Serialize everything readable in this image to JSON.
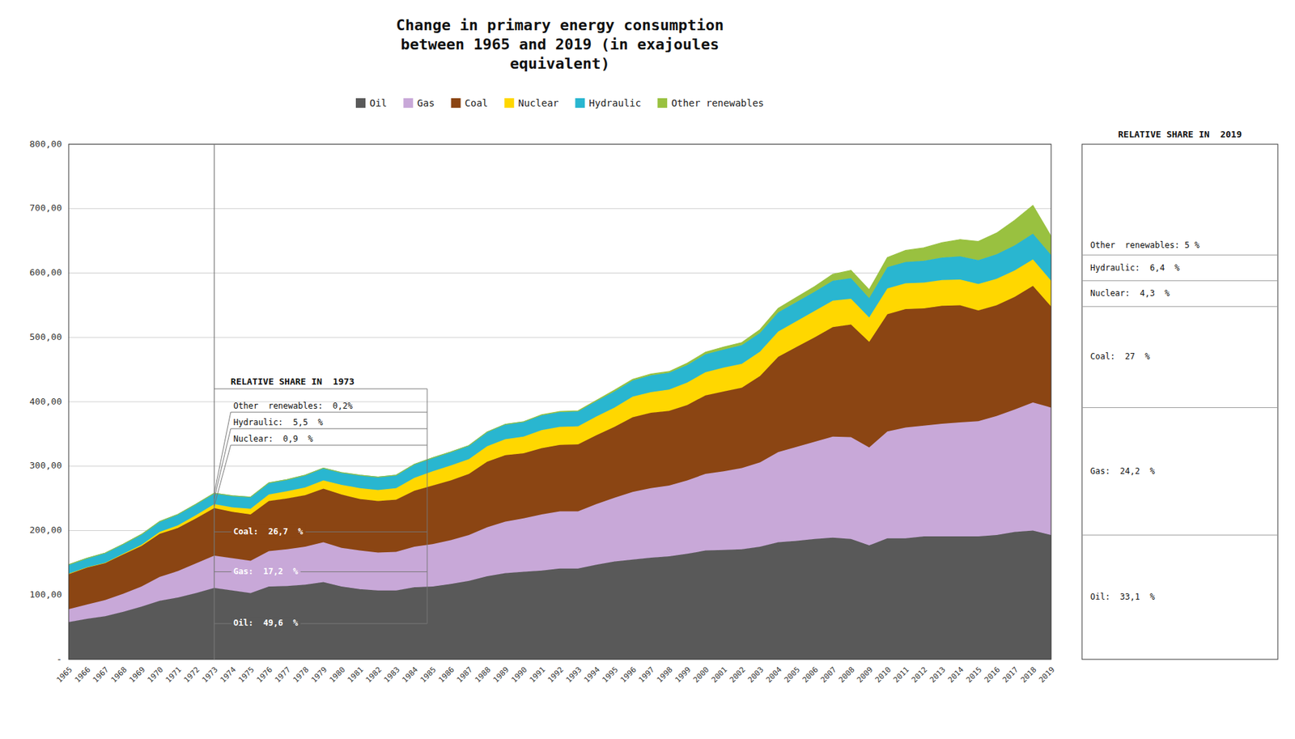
{
  "chart_data": {
    "type": "area",
    "stacked": true,
    "title": "Change in primary energy consumption\nbetween 1965 and 2019 (in exajoules\nequivalent)",
    "x": [
      1965,
      1966,
      1967,
      1968,
      1969,
      1970,
      1971,
      1972,
      1973,
      1974,
      1975,
      1976,
      1977,
      1978,
      1979,
      1980,
      1981,
      1982,
      1983,
      1984,
      1985,
      1986,
      1987,
      1988,
      1989,
      1990,
      1991,
      1992,
      1993,
      1994,
      1995,
      1996,
      1997,
      1998,
      1999,
      2000,
      2001,
      2002,
      2003,
      2004,
      2005,
      2006,
      2007,
      2008,
      2009,
      2010,
      2011,
      2012,
      2013,
      2014,
      2015,
      2016,
      2017,
      2018,
      2019
    ],
    "series": [
      {
        "name": "Oil",
        "color": "#595959",
        "values": [
          58,
          63,
          67,
          74,
          82,
          91,
          96,
          103,
          111,
          107,
          103,
          113,
          114,
          116,
          120,
          113,
          109,
          107,
          107,
          112,
          113,
          117,
          122,
          129,
          134,
          136,
          138,
          141,
          141,
          147,
          152,
          155,
          158,
          160,
          164,
          169,
          170,
          171,
          175,
          182,
          184,
          187,
          189,
          187,
          177,
          188,
          188,
          191,
          191,
          191,
          191,
          193,
          198,
          200,
          193
        ]
      },
      {
        "name": "Gas",
        "color": "#c8a8d8",
        "values": [
          20,
          22,
          25,
          28,
          31,
          37,
          41,
          46,
          50,
          50,
          50,
          55,
          57,
          59,
          62,
          60,
          60,
          59,
          60,
          63,
          66,
          68,
          71,
          76,
          80,
          83,
          87,
          89,
          89,
          94,
          99,
          105,
          108,
          110,
          114,
          119,
          122,
          126,
          131,
          140,
          146,
          151,
          157,
          158,
          152,
          166,
          172,
          172,
          175,
          177,
          179,
          185,
          190,
          199,
          198
        ]
      },
      {
        "name": "Coal",
        "color": "#8B4513",
        "values": [
          55,
          58,
          58,
          61,
          63,
          67,
          67,
          70,
          74,
          72,
          72,
          78,
          79,
          80,
          83,
          83,
          80,
          80,
          81,
          87,
          91,
          93,
          95,
          102,
          103,
          101,
          103,
          103,
          104,
          107,
          110,
          116,
          117,
          116,
          117,
          122,
          124,
          125,
          134,
          148,
          155,
          162,
          170,
          175,
          164,
          182,
          184,
          182,
          183,
          182,
          172,
          172,
          175,
          181,
          157
        ]
      },
      {
        "name": "Nuclear",
        "color": "#FFD700",
        "values": [
          0,
          0,
          0,
          1,
          2,
          3,
          4,
          5,
          6,
          7,
          9,
          10,
          11,
          12,
          13,
          15,
          17,
          17,
          18,
          20,
          22,
          23,
          23,
          24,
          25,
          26,
          28,
          28,
          28,
          29,
          30,
          32,
          32,
          33,
          35,
          36,
          37,
          37,
          38,
          39,
          40,
          41,
          41,
          40,
          38,
          40,
          40,
          40,
          40,
          40,
          41,
          41,
          41,
          41,
          40
        ]
      },
      {
        "name": "Hydraulic",
        "color": "#29B6D0",
        "values": [
          14,
          14,
          15,
          15,
          16,
          16,
          17,
          17,
          17,
          18,
          18,
          18,
          18,
          19,
          19,
          19,
          20,
          20,
          20,
          21,
          21,
          21,
          21,
          22,
          23,
          23,
          23,
          23,
          23,
          24,
          25,
          25,
          26,
          26,
          27,
          28,
          28,
          29,
          29,
          30,
          30,
          30,
          31,
          32,
          30,
          33,
          33,
          34,
          35,
          36,
          37,
          38,
          39,
          40,
          40
        ]
      },
      {
        "name": "Other renewables",
        "color": "#99C140",
        "values": [
          0,
          0,
          0,
          0,
          0,
          0,
          0,
          0,
          0,
          0,
          0,
          0,
          0,
          0,
          0,
          0,
          0,
          0,
          0,
          0,
          0,
          0,
          0,
          0,
          0,
          0,
          1,
          1,
          1,
          1,
          2,
          2,
          2,
          2,
          3,
          3,
          4,
          4,
          5,
          6,
          7,
          8,
          10,
          12,
          13,
          15,
          18,
          20,
          23,
          26,
          29,
          33,
          39,
          44,
          29
        ]
      }
    ],
    "xlim": [
      1965,
      2019
    ],
    "xticks": [
      1965,
      1966,
      1967,
      1968,
      1969,
      1970,
      1971,
      1972,
      1973,
      1974,
      1975,
      1976,
      1977,
      1978,
      1979,
      1980,
      1981,
      1982,
      1983,
      1984,
      1985,
      1986,
      1987,
      1988,
      1989,
      1990,
      1991,
      1992,
      1993,
      1994,
      1995,
      1996,
      1997,
      1998,
      1999,
      2000,
      2001,
      2002,
      2003,
      2004,
      2005,
      2006,
      2007,
      2008,
      2009,
      2010,
      2011,
      2012,
      2013,
      2014,
      2015,
      2016,
      2017,
      2018,
      2019
    ],
    "ylim": [
      0,
      800
    ],
    "yticks": [
      {
        "value": 0,
        "label": "-"
      },
      {
        "value": 100,
        "label": "100,00"
      },
      {
        "value": 200,
        "label": "200,00"
      },
      {
        "value": 300,
        "label": "300,00"
      },
      {
        "value": 400,
        "label": "400,00"
      },
      {
        "value": 500,
        "label": "500,00"
      },
      {
        "value": 600,
        "label": "600,00"
      },
      {
        "value": 700,
        "label": "700,00"
      },
      {
        "value": 800,
        "label": "800,00"
      }
    ],
    "grid": true,
    "legend": "top",
    "annotations": [
      {
        "title": "RELATIVE SHARE IN  1973",
        "x": 1973,
        "labels": [
          "Other  renewables:  0,2%",
          "Hydraulic:  5,5  %",
          "Nuclear:  0,9  %",
          "Coal:  26,7  %",
          "Gas:  17,2  %",
          "Oil:  49,6  %"
        ]
      },
      {
        "title": "RELATIVE SHARE IN  2019",
        "x": 2019,
        "labels": [
          "Other  renewables: 5 %",
          "Hydraulic:  6,4  %",
          "Nuclear:  4,3  %",
          "Coal:  27  %",
          "Gas:  24,2  %",
          "Oil:  33,1  %"
        ]
      }
    ]
  }
}
